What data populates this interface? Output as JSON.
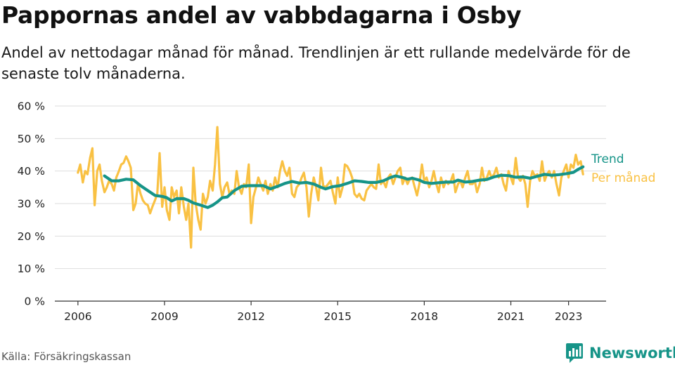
{
  "title": "Pappornas andel av vabbdagarna i Osby",
  "subtitle": "Andel av nettodagar månad för månad. Trendlinjen är ett rullande medelvärde för de senaste tolv månaderna.",
  "source": "Källa: Försäkringskassan",
  "brand": {
    "name": "Newsworthy",
    "logo_icon": "bar-chart-speech-bubble-icon"
  },
  "colors": {
    "trend": "#169488",
    "monthly": "#F9C143",
    "grid": "#dddddd",
    "axis": "#333333",
    "brand": "#169488"
  },
  "chart_data": {
    "type": "line",
    "ylim": [
      0,
      60
    ],
    "y_ticks": [
      0,
      10,
      20,
      30,
      40,
      50,
      60
    ],
    "y_tick_labels": [
      "0 %",
      "10 %",
      "20 %",
      "30 %",
      "40 %",
      "50 %",
      "60 %"
    ],
    "x_ticks": [
      2006,
      2009,
      2012,
      2015,
      2018,
      2021,
      2023
    ],
    "x_tick_labels": [
      "2006",
      "2009",
      "2012",
      "2015",
      "2018",
      "2021",
      "2023"
    ],
    "xlim": [
      2005.2,
      2024.3
    ],
    "grid": true,
    "series": [
      {
        "name": "Per månad",
        "points": [
          [
            2006.0,
            39.5
          ],
          [
            2006.08,
            42
          ],
          [
            2006.17,
            36.5
          ],
          [
            2006.25,
            40
          ],
          [
            2006.33,
            39
          ],
          [
            2006.42,
            44
          ],
          [
            2006.5,
            47
          ],
          [
            2006.58,
            29.5
          ],
          [
            2006.67,
            40
          ],
          [
            2006.75,
            42
          ],
          [
            2006.83,
            37
          ],
          [
            2006.92,
            33.5
          ],
          [
            2007.0,
            35
          ],
          [
            2007.08,
            37
          ],
          [
            2007.17,
            36
          ],
          [
            2007.25,
            34
          ],
          [
            2007.33,
            38
          ],
          [
            2007.42,
            40
          ],
          [
            2007.5,
            42
          ],
          [
            2007.58,
            42.5
          ],
          [
            2007.67,
            44.5
          ],
          [
            2007.75,
            43
          ],
          [
            2007.83,
            41
          ],
          [
            2007.92,
            28
          ],
          [
            2008.0,
            30
          ],
          [
            2008.08,
            36
          ],
          [
            2008.17,
            33
          ],
          [
            2008.25,
            31
          ],
          [
            2008.33,
            30
          ],
          [
            2008.42,
            29.5
          ],
          [
            2008.5,
            27
          ],
          [
            2008.58,
            29
          ],
          [
            2008.67,
            31
          ],
          [
            2008.75,
            33
          ],
          [
            2008.83,
            45.5
          ],
          [
            2008.92,
            29
          ],
          [
            2009.0,
            35
          ],
          [
            2009.08,
            28
          ],
          [
            2009.17,
            25
          ],
          [
            2009.25,
            35
          ],
          [
            2009.33,
            32
          ],
          [
            2009.42,
            34
          ],
          [
            2009.5,
            27
          ],
          [
            2009.58,
            35
          ],
          [
            2009.67,
            29
          ],
          [
            2009.75,
            25
          ],
          [
            2009.83,
            30
          ],
          [
            2009.92,
            16.5
          ],
          [
            2010.0,
            41
          ],
          [
            2010.08,
            30
          ],
          [
            2010.17,
            25
          ],
          [
            2010.25,
            22
          ],
          [
            2010.33,
            33
          ],
          [
            2010.42,
            30
          ],
          [
            2010.5,
            32
          ],
          [
            2010.58,
            37
          ],
          [
            2010.67,
            34
          ],
          [
            2010.75,
            42
          ],
          [
            2010.83,
            53.5
          ],
          [
            2010.92,
            36
          ],
          [
            2011.0,
            32
          ],
          [
            2011.08,
            35
          ],
          [
            2011.17,
            36.5
          ],
          [
            2011.25,
            33
          ],
          [
            2011.33,
            34
          ],
          [
            2011.42,
            33
          ],
          [
            2011.5,
            40
          ],
          [
            2011.58,
            35
          ],
          [
            2011.67,
            33
          ],
          [
            2011.75,
            36
          ],
          [
            2011.83,
            35
          ],
          [
            2011.92,
            42
          ],
          [
            2012.0,
            24
          ],
          [
            2012.08,
            32
          ],
          [
            2012.17,
            35
          ],
          [
            2012.25,
            38
          ],
          [
            2012.33,
            36
          ],
          [
            2012.42,
            34
          ],
          [
            2012.5,
            37
          ],
          [
            2012.58,
            33
          ],
          [
            2012.67,
            36
          ],
          [
            2012.75,
            34
          ],
          [
            2012.83,
            38
          ],
          [
            2012.92,
            35
          ],
          [
            2013.0,
            40
          ],
          [
            2013.08,
            43
          ],
          [
            2013.17,
            40
          ],
          [
            2013.25,
            38.5
          ],
          [
            2013.33,
            41
          ],
          [
            2013.42,
            33
          ],
          [
            2013.5,
            32
          ],
          [
            2013.58,
            35
          ],
          [
            2013.67,
            36
          ],
          [
            2013.75,
            38
          ],
          [
            2013.83,
            39.5
          ],
          [
            2013.92,
            35
          ],
          [
            2014.0,
            26
          ],
          [
            2014.08,
            33
          ],
          [
            2014.17,
            38
          ],
          [
            2014.25,
            35
          ],
          [
            2014.33,
            31
          ],
          [
            2014.42,
            41
          ],
          [
            2014.5,
            35.5
          ],
          [
            2014.58,
            35
          ],
          [
            2014.67,
            36
          ],
          [
            2014.75,
            37
          ],
          [
            2014.83,
            33.5
          ],
          [
            2014.92,
            30
          ],
          [
            2015.0,
            38
          ],
          [
            2015.08,
            32
          ],
          [
            2015.17,
            35
          ],
          [
            2015.25,
            42
          ],
          [
            2015.33,
            41.5
          ],
          [
            2015.42,
            40
          ],
          [
            2015.5,
            38
          ],
          [
            2015.58,
            33
          ],
          [
            2015.67,
            32
          ],
          [
            2015.75,
            33
          ],
          [
            2015.83,
            31.5
          ],
          [
            2015.92,
            31
          ],
          [
            2016.0,
            34
          ],
          [
            2016.08,
            35
          ],
          [
            2016.17,
            36
          ],
          [
            2016.25,
            35
          ],
          [
            2016.33,
            34.5
          ],
          [
            2016.42,
            42
          ],
          [
            2016.5,
            36
          ],
          [
            2016.58,
            37
          ],
          [
            2016.67,
            35
          ],
          [
            2016.75,
            38
          ],
          [
            2016.83,
            39
          ],
          [
            2016.92,
            36
          ],
          [
            2017.0,
            38
          ],
          [
            2017.08,
            40
          ],
          [
            2017.17,
            41
          ],
          [
            2017.25,
            36
          ],
          [
            2017.33,
            38
          ],
          [
            2017.42,
            36
          ],
          [
            2017.5,
            37.5
          ],
          [
            2017.58,
            38
          ],
          [
            2017.67,
            35
          ],
          [
            2017.75,
            32.5
          ],
          [
            2017.83,
            36
          ],
          [
            2017.92,
            42
          ],
          [
            2018.0,
            37
          ],
          [
            2018.08,
            38
          ],
          [
            2018.17,
            35
          ],
          [
            2018.25,
            37
          ],
          [
            2018.33,
            40
          ],
          [
            2018.42,
            36
          ],
          [
            2018.5,
            33.5
          ],
          [
            2018.58,
            38
          ],
          [
            2018.67,
            35
          ],
          [
            2018.75,
            37
          ],
          [
            2018.83,
            36
          ],
          [
            2018.92,
            37
          ],
          [
            2019.0,
            39
          ],
          [
            2019.08,
            33.5
          ],
          [
            2019.17,
            36
          ],
          [
            2019.25,
            37
          ],
          [
            2019.33,
            35
          ],
          [
            2019.42,
            38
          ],
          [
            2019.5,
            40
          ],
          [
            2019.58,
            36
          ],
          [
            2019.67,
            36
          ],
          [
            2019.75,
            37
          ],
          [
            2019.83,
            33.5
          ],
          [
            2019.92,
            36
          ],
          [
            2020.0,
            41
          ],
          [
            2020.08,
            37
          ],
          [
            2020.17,
            38
          ],
          [
            2020.25,
            40
          ],
          [
            2020.33,
            38
          ],
          [
            2020.42,
            39
          ],
          [
            2020.5,
            41
          ],
          [
            2020.58,
            38
          ],
          [
            2020.67,
            39
          ],
          [
            2020.75,
            36
          ],
          [
            2020.83,
            34
          ],
          [
            2020.92,
            40
          ],
          [
            2021.0,
            38
          ],
          [
            2021.08,
            36
          ],
          [
            2021.17,
            44
          ],
          [
            2021.25,
            38
          ],
          [
            2021.33,
            37
          ],
          [
            2021.42,
            38.5
          ],
          [
            2021.5,
            36
          ],
          [
            2021.58,
            29
          ],
          [
            2021.67,
            37
          ],
          [
            2021.75,
            40
          ],
          [
            2021.83,
            38.5
          ],
          [
            2021.92,
            39
          ],
          [
            2022.0,
            37
          ],
          [
            2022.08,
            43
          ],
          [
            2022.17,
            37
          ],
          [
            2022.25,
            39
          ],
          [
            2022.33,
            40
          ],
          [
            2022.42,
            38
          ],
          [
            2022.5,
            40
          ],
          [
            2022.58,
            36
          ],
          [
            2022.67,
            32.5
          ],
          [
            2022.75,
            38
          ],
          [
            2022.83,
            40
          ],
          [
            2022.92,
            42
          ],
          [
            2023.0,
            38
          ],
          [
            2023.08,
            42
          ],
          [
            2023.17,
            41
          ],
          [
            2023.25,
            45
          ],
          [
            2023.33,
            42
          ],
          [
            2023.42,
            43
          ],
          [
            2023.5,
            39
          ]
        ]
      },
      {
        "name": "Trend",
        "points": [
          [
            2006.92,
            38.5
          ],
          [
            2007.17,
            37
          ],
          [
            2007.42,
            37
          ],
          [
            2007.67,
            37.5
          ],
          [
            2007.92,
            37.3
          ],
          [
            2008.17,
            35.5
          ],
          [
            2008.42,
            34
          ],
          [
            2008.67,
            32.5
          ],
          [
            2008.92,
            32.2
          ],
          [
            2009.08,
            31.8
          ],
          [
            2009.25,
            30.8
          ],
          [
            2009.42,
            31.5
          ],
          [
            2009.67,
            31.5
          ],
          [
            2009.83,
            31
          ],
          [
            2010.0,
            30.2
          ],
          [
            2010.25,
            29.5
          ],
          [
            2010.5,
            28.8
          ],
          [
            2010.67,
            29.5
          ],
          [
            2010.83,
            30.5
          ],
          [
            2011.0,
            31.8
          ],
          [
            2011.17,
            32
          ],
          [
            2011.42,
            34
          ],
          [
            2011.67,
            35.3
          ],
          [
            2011.92,
            35.5
          ],
          [
            2012.17,
            35.5
          ],
          [
            2012.42,
            35.5
          ],
          [
            2012.67,
            34.5
          ],
          [
            2012.92,
            35.3
          ],
          [
            2013.17,
            36.2
          ],
          [
            2013.42,
            36.8
          ],
          [
            2013.67,
            36.3
          ],
          [
            2013.92,
            36.5
          ],
          [
            2014.17,
            36
          ],
          [
            2014.42,
            35
          ],
          [
            2014.58,
            34.5
          ],
          [
            2014.83,
            35.2
          ],
          [
            2015.08,
            35.5
          ],
          [
            2015.33,
            36.2
          ],
          [
            2015.58,
            37
          ],
          [
            2015.83,
            36.8
          ],
          [
            2016.08,
            36.5
          ],
          [
            2016.33,
            36.5
          ],
          [
            2016.58,
            37
          ],
          [
            2016.83,
            38
          ],
          [
            2017.0,
            38.5
          ],
          [
            2017.25,
            38
          ],
          [
            2017.42,
            37.5
          ],
          [
            2017.58,
            37.8
          ],
          [
            2017.83,
            37.2
          ],
          [
            2018.0,
            36.5
          ],
          [
            2018.25,
            36.2
          ],
          [
            2018.5,
            36.4
          ],
          [
            2018.75,
            36.6
          ],
          [
            2019.0,
            36.6
          ],
          [
            2019.17,
            37.2
          ],
          [
            2019.42,
            36.6
          ],
          [
            2019.67,
            36.8
          ],
          [
            2019.92,
            37.2
          ],
          [
            2020.17,
            37.4
          ],
          [
            2020.42,
            38.2
          ],
          [
            2020.67,
            38.7
          ],
          [
            2020.92,
            38.6
          ],
          [
            2021.17,
            38.1
          ],
          [
            2021.42,
            38.2
          ],
          [
            2021.67,
            37.8
          ],
          [
            2021.92,
            38.4
          ],
          [
            2022.17,
            39
          ],
          [
            2022.42,
            38.7
          ],
          [
            2022.67,
            38.9
          ],
          [
            2022.92,
            39.2
          ],
          [
            2023.17,
            39.6
          ],
          [
            2023.33,
            40.5
          ],
          [
            2023.5,
            41.3
          ]
        ]
      }
    ]
  }
}
